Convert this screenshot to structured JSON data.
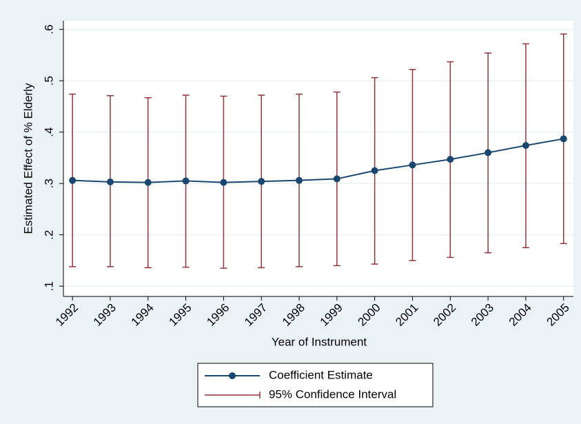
{
  "chart_data": {
    "type": "line_range",
    "x_label": "Year of Instrument",
    "y_label": "Estimated Effect of % Elderly",
    "x": [
      1992,
      1993,
      1994,
      1995,
      1996,
      1997,
      1998,
      1999,
      2000,
      2001,
      2002,
      2003,
      2004,
      2005
    ],
    "xlim": [
      1991.76,
      2005.26
    ],
    "xticks": [
      1992,
      1993,
      1994,
      1995,
      1996,
      1997,
      1998,
      1999,
      2000,
      2001,
      2002,
      2003,
      2004,
      2005
    ],
    "ylim": [
      0.08,
      0.617
    ],
    "yticks": [
      {
        "value": 0.1,
        "label": ".1"
      },
      {
        "value": 0.2,
        "label": ".2"
      },
      {
        "value": 0.3,
        "label": ".3"
      },
      {
        "value": 0.4,
        "label": ".4"
      },
      {
        "value": 0.5,
        "label": ".5"
      },
      {
        "value": 0.6,
        "label": ".6"
      }
    ],
    "grid": true,
    "legend": "bottom",
    "series": [
      {
        "name": "Coefficient Estimate",
        "color": "#1a476f",
        "kind": "line",
        "values": [
          0.306,
          0.303,
          0.302,
          0.305,
          0.302,
          0.304,
          0.306,
          0.309,
          0.325,
          0.336,
          0.347,
          0.36,
          0.374,
          0.387
        ]
      },
      {
        "name": "95% Confidence Interval",
        "color": "#90353b",
        "kind": "range",
        "low": [
          0.138,
          0.138,
          0.136,
          0.137,
          0.135,
          0.136,
          0.138,
          0.14,
          0.143,
          0.15,
          0.156,
          0.165,
          0.175,
          0.183
        ],
        "high": [
          0.474,
          0.471,
          0.467,
          0.472,
          0.47,
          0.472,
          0.474,
          0.478,
          0.506,
          0.522,
          0.537,
          0.554,
          0.572,
          0.591
        ]
      }
    ]
  }
}
